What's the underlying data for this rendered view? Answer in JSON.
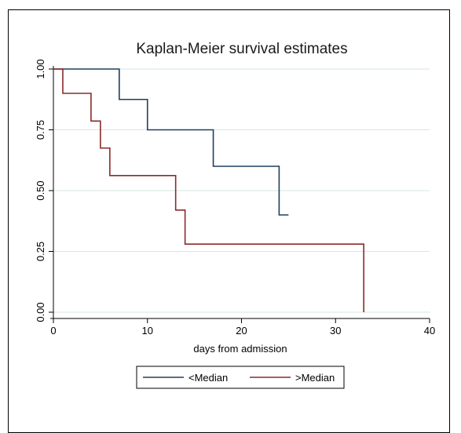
{
  "chart_data": {
    "type": "line",
    "title": "Kaplan-Meier survival estimates",
    "xlabel": "days from admission",
    "ylabel": "",
    "xlim": [
      0,
      40
    ],
    "ylim": [
      0,
      1
    ],
    "x_ticks": [
      0,
      10,
      20,
      30,
      40
    ],
    "y_ticks": [
      0.0,
      0.25,
      0.5,
      0.75,
      1.0
    ],
    "x_tick_labels": [
      "0",
      "10",
      "20",
      "30",
      "40"
    ],
    "y_tick_labels": [
      "0.00",
      "0.25",
      "0.50",
      "0.75",
      "1.00"
    ],
    "grid": "horizontal",
    "legend_position": "bottom",
    "step": true,
    "series": [
      {
        "name": "<Median",
        "color": "#1f3f5f",
        "x": [
          0,
          7,
          10,
          17,
          24,
          25
        ],
        "y": [
          1.0,
          0.875,
          0.75,
          0.6,
          0.4,
          0.4
        ]
      },
      {
        "name": ">Median",
        "color": "#8b2a2a",
        "x": [
          0,
          1,
          4,
          5,
          6,
          13,
          14,
          33,
          33
        ],
        "y": [
          1.0,
          0.9,
          0.786,
          0.675,
          0.562,
          0.42,
          0.28,
          0.28,
          0.0
        ]
      }
    ]
  }
}
